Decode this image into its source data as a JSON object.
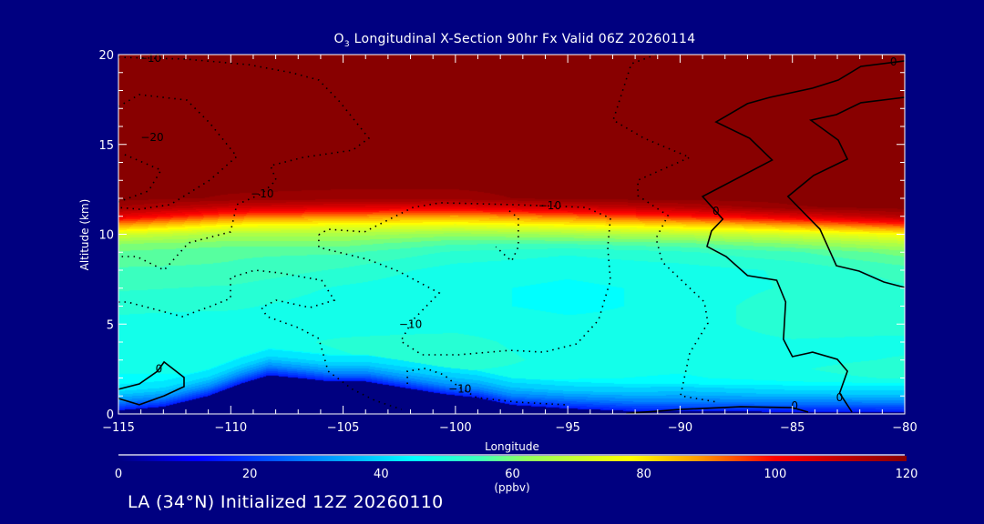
{
  "title_prefix": "O",
  "title_sub": "3",
  "title_rest": " Longitudinal X-Section 90hr  Fx Valid 06Z 20260114",
  "footer": "LA (34°N) Initialized 12Z 20260110",
  "colors": {
    "background": "#000080",
    "axis": "#ffffff",
    "contour": "#000000"
  },
  "chart_data": {
    "type": "heatmap",
    "title": "O3 Longitudinal X-Section 90hr  Fx Valid 06Z 20260114",
    "xlabel": "Longitude",
    "ylabel": "Altitude (km)",
    "xlim": [
      -115,
      -80
    ],
    "ylim": [
      0,
      20
    ],
    "x_ticks": [
      -115,
      -110,
      -105,
      -100,
      -95,
      -90,
      -85,
      -80
    ],
    "x_tick_labels": [
      "−115",
      "−110",
      "−105",
      "−100",
      "−95",
      "−90",
      "−85",
      "−80"
    ],
    "y_ticks": [
      0,
      5,
      10,
      15,
      20
    ],
    "y_tick_labels": [
      "0",
      "5",
      "10",
      "15",
      "20"
    ],
    "colorbar": {
      "label": "(ppbv)",
      "range": [
        0,
        120
      ],
      "ticks": [
        0,
        20,
        40,
        60,
        80,
        100,
        120
      ],
      "tick_labels": [
        "0",
        "20",
        "40",
        "60",
        "80",
        "100",
        "120"
      ],
      "stops": [
        [
          0,
          "#000080"
        ],
        [
          12,
          "#0000ff"
        ],
        [
          25,
          "#0060ff"
        ],
        [
          45,
          "#00ffff"
        ],
        [
          55,
          "#40ffb8"
        ],
        [
          62,
          "#90ff60"
        ],
        [
          78,
          "#ffff00"
        ],
        [
          88,
          "#ffa000"
        ],
        [
          100,
          "#ff0000"
        ],
        [
          110,
          "#c00000"
        ],
        [
          120,
          "#880000"
        ]
      ]
    },
    "grid": {
      "lons": [
        -115,
        -110,
        -105,
        -100,
        -95,
        -90,
        -85,
        -80
      ],
      "alts": [
        0,
        0.5,
        1,
        1.5,
        2,
        2.5,
        3,
        4,
        5,
        6,
        7,
        8,
        9,
        9.5,
        10,
        10.5,
        11,
        11.5,
        12,
        13,
        20
      ],
      "values_ppbv": [
        [
          15,
          15,
          15,
          15,
          15,
          15,
          15,
          15
        ],
        [
          30,
          30,
          30,
          30,
          28,
          28,
          28,
          28
        ],
        [
          40,
          40,
          40,
          38,
          38,
          36,
          38,
          38
        ],
        [
          44,
          44,
          44,
          43,
          43,
          42,
          44,
          44
        ],
        [
          46,
          46,
          47,
          48,
          47,
          46,
          48,
          50
        ],
        [
          47,
          47,
          48,
          50,
          48,
          47,
          49,
          52
        ],
        [
          47,
          47,
          49,
          52,
          48,
          47,
          48,
          50
        ],
        [
          48,
          48,
          50,
          51,
          47,
          47,
          49,
          48
        ],
        [
          49,
          48,
          48,
          48,
          47,
          47,
          52,
          52
        ],
        [
          50,
          50,
          48,
          47,
          46,
          47,
          52,
          52
        ],
        [
          53,
          52,
          49,
          47,
          46,
          47,
          50,
          52
        ],
        [
          55,
          55,
          52,
          48,
          47,
          48,
          50,
          54
        ],
        [
          58,
          56,
          56,
          52,
          50,
          52,
          55,
          60
        ],
        [
          62,
          60,
          60,
          56,
          56,
          58,
          62,
          68
        ],
        [
          72,
          66,
          66,
          63,
          65,
          68,
          72,
          78
        ],
        [
          88,
          78,
          76,
          75,
          78,
          82,
          88,
          95
        ],
        [
          104,
          93,
          90,
          88,
          92,
          98,
          105,
          112
        ],
        [
          115,
          108,
          105,
          104,
          108,
          112,
          118,
          120
        ],
        [
          120,
          118,
          117,
          117,
          120,
          120,
          120,
          120
        ],
        [
          120,
          120,
          120,
          120,
          120,
          120,
          120,
          120
        ],
        [
          120,
          120,
          120,
          120,
          120,
          120,
          120,
          120
        ]
      ]
    },
    "terrain_km": {
      "lons": [
        -115,
        -113,
        -111,
        -109.5,
        -108.3,
        -107,
        -105.5,
        -104,
        -102,
        -100.5,
        -99,
        -97.5,
        -95,
        -92,
        -80
      ],
      "heights": [
        0.2,
        0.4,
        1.0,
        1.7,
        2.15,
        2.0,
        1.8,
        1.8,
        1.4,
        1.1,
        0.9,
        0.5,
        0.3,
        0.15,
        0.1
      ]
    },
    "contours": [
      {
        "level": 0,
        "style": "solid",
        "points": [
          [
            -80,
            19.65
          ],
          [
            -81.95,
            19.34
          ],
          [
            -82.96,
            18.58
          ],
          [
            -84.1,
            18.13
          ],
          [
            -86,
            17.62
          ],
          [
            -87,
            17.27
          ],
          [
            -88.4,
            16.25
          ],
          [
            -86.9,
            15.34
          ],
          [
            -85.9,
            14.13
          ],
          [
            -89,
            12.1
          ],
          [
            -88.1,
            10.84
          ],
          [
            -88.6,
            10.18
          ],
          [
            -88.8,
            9.32
          ],
          [
            -87.95,
            8.76
          ],
          [
            -87,
            7.7
          ],
          [
            -85.7,
            7.44
          ],
          [
            -85.3,
            6.23
          ],
          [
            -85.4,
            4.15
          ],
          [
            -85,
            3.19
          ],
          [
            -84.1,
            3.44
          ],
          [
            -83,
            3.04
          ],
          [
            -82.55,
            2.38
          ],
          [
            -82.9,
            1.16
          ],
          [
            -82.35,
            0.1
          ]
        ]
      },
      {
        "level": 0,
        "style": "solid",
        "points": [
          [
            -80,
            17.62
          ],
          [
            -81.95,
            17.32
          ],
          [
            -83.04,
            16.66
          ],
          [
            -84.18,
            16.35
          ],
          [
            -82.96,
            15.24
          ],
          [
            -82.55,
            14.18
          ],
          [
            -84.06,
            13.27
          ],
          [
            -85.2,
            12.1
          ],
          [
            -83.77,
            10.28
          ],
          [
            -83.04,
            8.25
          ],
          [
            -82.03,
            7.95
          ],
          [
            -80.93,
            7.34
          ],
          [
            -80,
            7.04
          ]
        ]
      },
      {
        "level": 0,
        "style": "solid",
        "points": [
          [
            -92.4,
            0.02
          ],
          [
            -90,
            0.25
          ],
          [
            -87.3,
            0.4
          ],
          [
            -85,
            0.35
          ],
          [
            -84.3,
            0.1
          ]
        ]
      },
      {
        "level": 0,
        "style": "solid",
        "points": [
          [
            -115,
            1.37
          ],
          [
            -114.07,
            1.67
          ],
          [
            -113.26,
            2.38
          ],
          [
            -112.97,
            2.89
          ],
          [
            -112.08,
            2.03
          ],
          [
            -112.08,
            1.52
          ],
          [
            -112.97,
            1.01
          ],
          [
            -114.07,
            0.51
          ],
          [
            -115,
            0.86
          ]
        ]
      },
      {
        "level": -10,
        "style": "dotted",
        "points": [
          [
            -115,
            19.85
          ],
          [
            -112.04,
            19.75
          ],
          [
            -109.2,
            19.44
          ],
          [
            -107.3,
            18.99
          ],
          [
            -106.08,
            18.58
          ],
          [
            -105.15,
            17.37
          ],
          [
            -103.85,
            15.34
          ],
          [
            -104.58,
            14.68
          ],
          [
            -106.77,
            14.28
          ],
          [
            -108.23,
            13.82
          ],
          [
            -107.98,
            13.01
          ],
          [
            -108.63,
            12.25
          ],
          [
            -109.73,
            11.65
          ],
          [
            -110.01,
            10.13
          ],
          [
            -111.88,
            9.52
          ],
          [
            -112.97,
            8.0
          ],
          [
            -114.19,
            8.76
          ],
          [
            -115,
            8.76
          ]
        ]
      },
      {
        "level": -20,
        "style": "dotted",
        "points": [
          [
            -115,
            17.11
          ],
          [
            -114.07,
            17.77
          ],
          [
            -111.96,
            17.47
          ],
          [
            -110.94,
            16.2
          ],
          [
            -109.73,
            14.33
          ],
          [
            -110.94,
            13.01
          ],
          [
            -112.69,
            11.65
          ],
          [
            -114.07,
            11.39
          ],
          [
            -115,
            11.49
          ]
        ]
      },
      {
        "level": -20,
        "style": "dotted",
        "points": [
          [
            -114.72,
            14.43
          ],
          [
            -113.1,
            13.57
          ],
          [
            -113.66,
            12.41
          ],
          [
            -115,
            11.8
          ]
        ]
      },
      {
        "level": -10,
        "style": "dotted",
        "points": [
          [
            -106.08,
            9.97
          ],
          [
            -105.67,
            10.28
          ],
          [
            -104.05,
            10.13
          ],
          [
            -101.9,
            11.49
          ],
          [
            -100.68,
            11.75
          ],
          [
            -97.56,
            11.65
          ],
          [
            -95,
            11.54
          ],
          [
            -94.19,
            11.49
          ],
          [
            -93.1,
            10.89
          ],
          [
            -93.22,
            9.27
          ],
          [
            -93.1,
            7.44
          ],
          [
            -93.63,
            5.22
          ],
          [
            -94.6,
            3.9
          ],
          [
            -96.06,
            3.44
          ],
          [
            -97.56,
            3.54
          ],
          [
            -99.87,
            3.29
          ],
          [
            -101.49,
            3.29
          ],
          [
            -102.43,
            4.05
          ],
          [
            -101.9,
            5.22
          ],
          [
            -100.72,
            6.73
          ],
          [
            -102.55,
            7.95
          ],
          [
            -103.93,
            8.61
          ],
          [
            -106.08,
            9.27
          ],
          [
            -106.08,
            9.97
          ]
        ]
      },
      {
        "level": -10,
        "style": "dotted",
        "points": [
          [
            -115,
            6.23
          ],
          [
            -114.6,
            6.23
          ],
          [
            -112.16,
            5.42
          ],
          [
            -110.94,
            5.97
          ],
          [
            -110.01,
            6.43
          ],
          [
            -110.01,
            7.59
          ],
          [
            -108.92,
            8.0
          ],
          [
            -107.82,
            7.85
          ],
          [
            -105.96,
            7.44
          ],
          [
            -105.39,
            6.33
          ],
          [
            -106.48,
            5.92
          ],
          [
            -107.98,
            6.33
          ],
          [
            -108.63,
            5.92
          ],
          [
            -108.39,
            5.42
          ],
          [
            -107.01,
            4.81
          ],
          [
            -106.08,
            4.2
          ],
          [
            -105.67,
            2.38
          ],
          [
            -104.58,
            1.37
          ],
          [
            -103.6,
            0.76
          ],
          [
            -102.4,
            0.25
          ]
        ]
      },
      {
        "level": -10,
        "style": "dotted",
        "points": [
          [
            -102.14,
            1.67
          ],
          [
            -102.14,
            2.38
          ],
          [
            -101.33,
            2.53
          ],
          [
            -100.52,
            2.18
          ],
          [
            -99.87,
            1.52
          ],
          [
            -99.06,
            0.91
          ],
          [
            -97.28,
            0.66
          ],
          [
            -95,
            0.5
          ]
        ]
      },
      {
        "level": -10,
        "style": "dotted",
        "points": [
          [
            -91.07,
            20
          ],
          [
            -92.17,
            19.49
          ],
          [
            -92.98,
            16.35
          ],
          [
            -91.6,
            15.34
          ],
          [
            -89.57,
            14.28
          ],
          [
            -91.88,
            13.01
          ],
          [
            -91.88,
            12.15
          ],
          [
            -90.54,
            11.04
          ],
          [
            -91.07,
            9.77
          ],
          [
            -90.79,
            8.46
          ],
          [
            -88.92,
            6.23
          ],
          [
            -88.76,
            5.06
          ],
          [
            -89.57,
            3.39
          ],
          [
            -89.98,
            1.01
          ],
          [
            -88.35,
            0.66
          ]
        ]
      },
      {
        "level": -10,
        "style": "dotted",
        "points": [
          [
            -97.6,
            11.3
          ],
          [
            -97.2,
            10.9
          ],
          [
            -97.2,
            9.3
          ],
          [
            -97.5,
            8.5
          ],
          [
            -98.2,
            9.3
          ]
        ]
      }
    ],
    "contour_labels": [
      {
        "text": "−10",
        "lon": -113.6,
        "alt": 19.8
      },
      {
        "text": "−20",
        "lon": -113.5,
        "alt": 15.4
      },
      {
        "text": "−10",
        "lon": -108.6,
        "alt": 12.25
      },
      {
        "text": "−10",
        "lon": -102.0,
        "alt": 5.0
      },
      {
        "text": "−10",
        "lon": -99.8,
        "alt": 1.4
      },
      {
        "text": "−10",
        "lon": -95.8,
        "alt": 11.6
      },
      {
        "text": "0",
        "lon": -113.2,
        "alt": 2.5
      },
      {
        "text": "0",
        "lon": -80.5,
        "alt": 19.6
      },
      {
        "text": "0",
        "lon": -88.4,
        "alt": 11.3
      },
      {
        "text": "0",
        "lon": -82.9,
        "alt": 0.9
      },
      {
        "text": "0",
        "lon": -84.9,
        "alt": 0.45
      }
    ]
  }
}
